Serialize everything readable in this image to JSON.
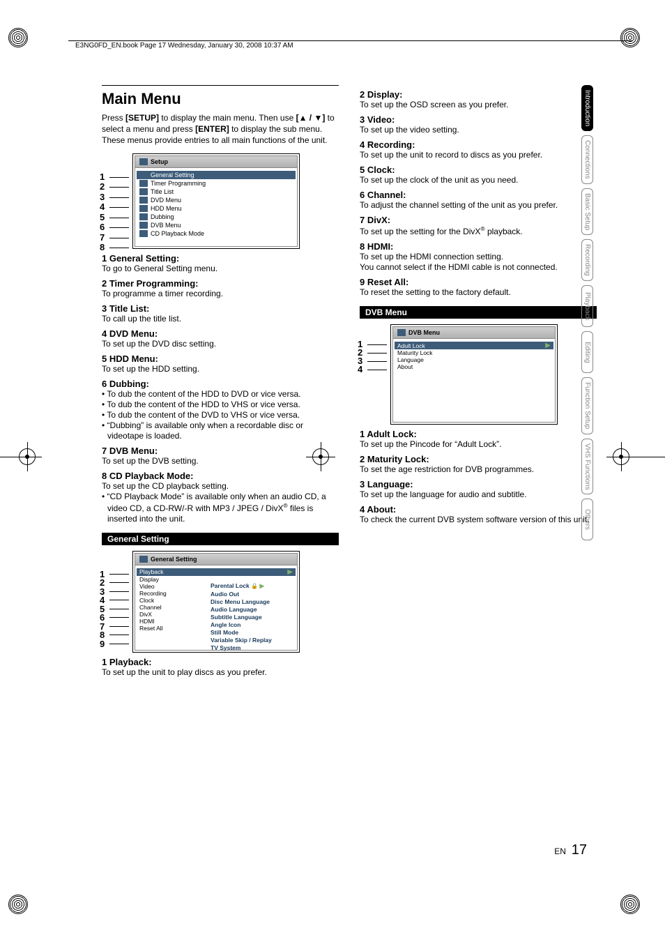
{
  "header": {
    "book_info": "E3NG0FD_EN.book  Page 17  Wednesday, January 30, 2008  10:37 AM"
  },
  "page": {
    "title": "Main Menu",
    "intro_1": "Press ",
    "intro_bold1": "[SETUP]",
    "intro_2": " to display the main menu. Then use ",
    "intro_bold2": "[▲ / ▼]",
    "intro_3": " to select a menu and press ",
    "intro_bold3": "[ENTER]",
    "intro_4": " to display the sub menu. These menus provide entries to all main functions of the unit."
  },
  "setup_menu": {
    "title": "Setup",
    "rows": [
      "General Setting",
      "Timer Programming",
      "Title List",
      "DVD Menu",
      "HDD Menu",
      "Dubbing",
      "DVB Menu",
      "CD Playback Mode"
    ],
    "numbers": [
      "1",
      "2",
      "3",
      "4",
      "5",
      "6",
      "7",
      "8"
    ]
  },
  "main_items": [
    {
      "head": "1  General Setting:",
      "desc": [
        "To go to General Setting menu."
      ]
    },
    {
      "head": "2  Timer Programming:",
      "desc": [
        "To programme a timer recording."
      ]
    },
    {
      "head": "3  Title List:",
      "desc": [
        "To call up the title list."
      ]
    },
    {
      "head": "4  DVD Menu:",
      "desc": [
        "To set up the DVD disc setting."
      ]
    },
    {
      "head": "5  HDD Menu:",
      "desc": [
        "To set up the HDD setting."
      ]
    },
    {
      "head": "6  Dubbing:",
      "bullets": [
        "To dub the content of the HDD to DVD or vice versa.",
        "To dub the content of the HDD to VHS or vice versa.",
        "To dub the content of the DVD to VHS or vice versa.",
        "“Dubbing” is available only when a recordable disc or videotape is loaded."
      ]
    },
    {
      "head": "7  DVB Menu:",
      "desc": [
        "To set up the DVB setting."
      ]
    },
    {
      "head": "8  CD Playback Mode:",
      "desc": [
        "To set up the CD playback setting."
      ],
      "bullets": [
        "“CD Playback Mode” is available only when an audio CD, a video CD, a CD-RW/-R with MP3 / JPEG / DivX® files is inserted into the unit."
      ]
    }
  ],
  "gs_bar": "General Setting",
  "gs_menu": {
    "title": "General Setting",
    "rows": [
      "Playback",
      "Display",
      "Video",
      "Recording",
      "Clock",
      "Channel",
      "DivX",
      "HDMI",
      "Reset All"
    ],
    "numbers": [
      "1",
      "2",
      "3",
      "4",
      "5",
      "6",
      "7",
      "8",
      "9"
    ],
    "subcol": [
      "Parental Lock",
      "Audio Out",
      "Disc Menu Language",
      "Audio Language",
      "Subtitle Language",
      "Angle Icon",
      "Still Mode",
      "Variable Skip / Replay",
      "TV System"
    ],
    "subcol_arrow": "▶",
    "subcol_lock": "🔒"
  },
  "gs_items": [
    {
      "head": "1  Playback:",
      "desc": [
        "To set up the unit to play discs as you prefer."
      ]
    }
  ],
  "right_items_a": [
    {
      "head": "2  Display:",
      "desc": [
        "To set up the OSD screen as you prefer."
      ]
    },
    {
      "head": "3  Video:",
      "desc": [
        "To set up the video setting."
      ]
    },
    {
      "head": "4  Recording:",
      "desc": [
        "To set up the unit to record to discs as you prefer."
      ]
    },
    {
      "head": "5  Clock:",
      "desc": [
        "To set up the clock of the unit as you need."
      ]
    },
    {
      "head": "6  Channel:",
      "desc": [
        "To adjust the channel setting of the unit as you prefer."
      ]
    },
    {
      "head": "7  DivX:",
      "desc": [
        "To set up the setting for the DivX® playback."
      ]
    },
    {
      "head": "8  HDMI:",
      "desc": [
        "To set up the HDMI connection setting.",
        "You cannot select if the HDMI cable is not connected."
      ]
    },
    {
      "head": "9  Reset All:",
      "desc": [
        "To reset the setting to the factory default."
      ]
    }
  ],
  "dvb_bar": "DVB Menu",
  "dvb_menu": {
    "title": "DVB Menu",
    "rows": [
      "Adult Lock",
      "Maturity Lock",
      "Language",
      "About"
    ],
    "numbers": [
      "1",
      "2",
      "3",
      "4"
    ]
  },
  "dvb_items": [
    {
      "head": "1  Adult Lock:",
      "desc": [
        "To set up the Pincode for “Adult Lock”."
      ]
    },
    {
      "head": "2  Maturity Lock:",
      "desc": [
        "To set the age restriction for DVB programmes."
      ]
    },
    {
      "head": "3  Language:",
      "desc": [
        "To set up the language for audio and subtitle."
      ]
    },
    {
      "head": "4  About:",
      "desc": [
        "To check the current DVB system software version of this unit."
      ]
    }
  ],
  "tabs": [
    "Introduction",
    "Connections",
    "Basic Setup",
    "Recording",
    "Playback",
    "Editing",
    "Function Setup",
    "VHS Functions",
    "Others"
  ],
  "tabs_active_index": 0,
  "footer": {
    "en": "EN",
    "page": "17"
  },
  "colors": {
    "menu_icon": "#3d5c7a",
    "menu_sel_bg": "#3d5c7a",
    "sub_text": "#1a3a5a",
    "tab_inactive": "#888888"
  }
}
